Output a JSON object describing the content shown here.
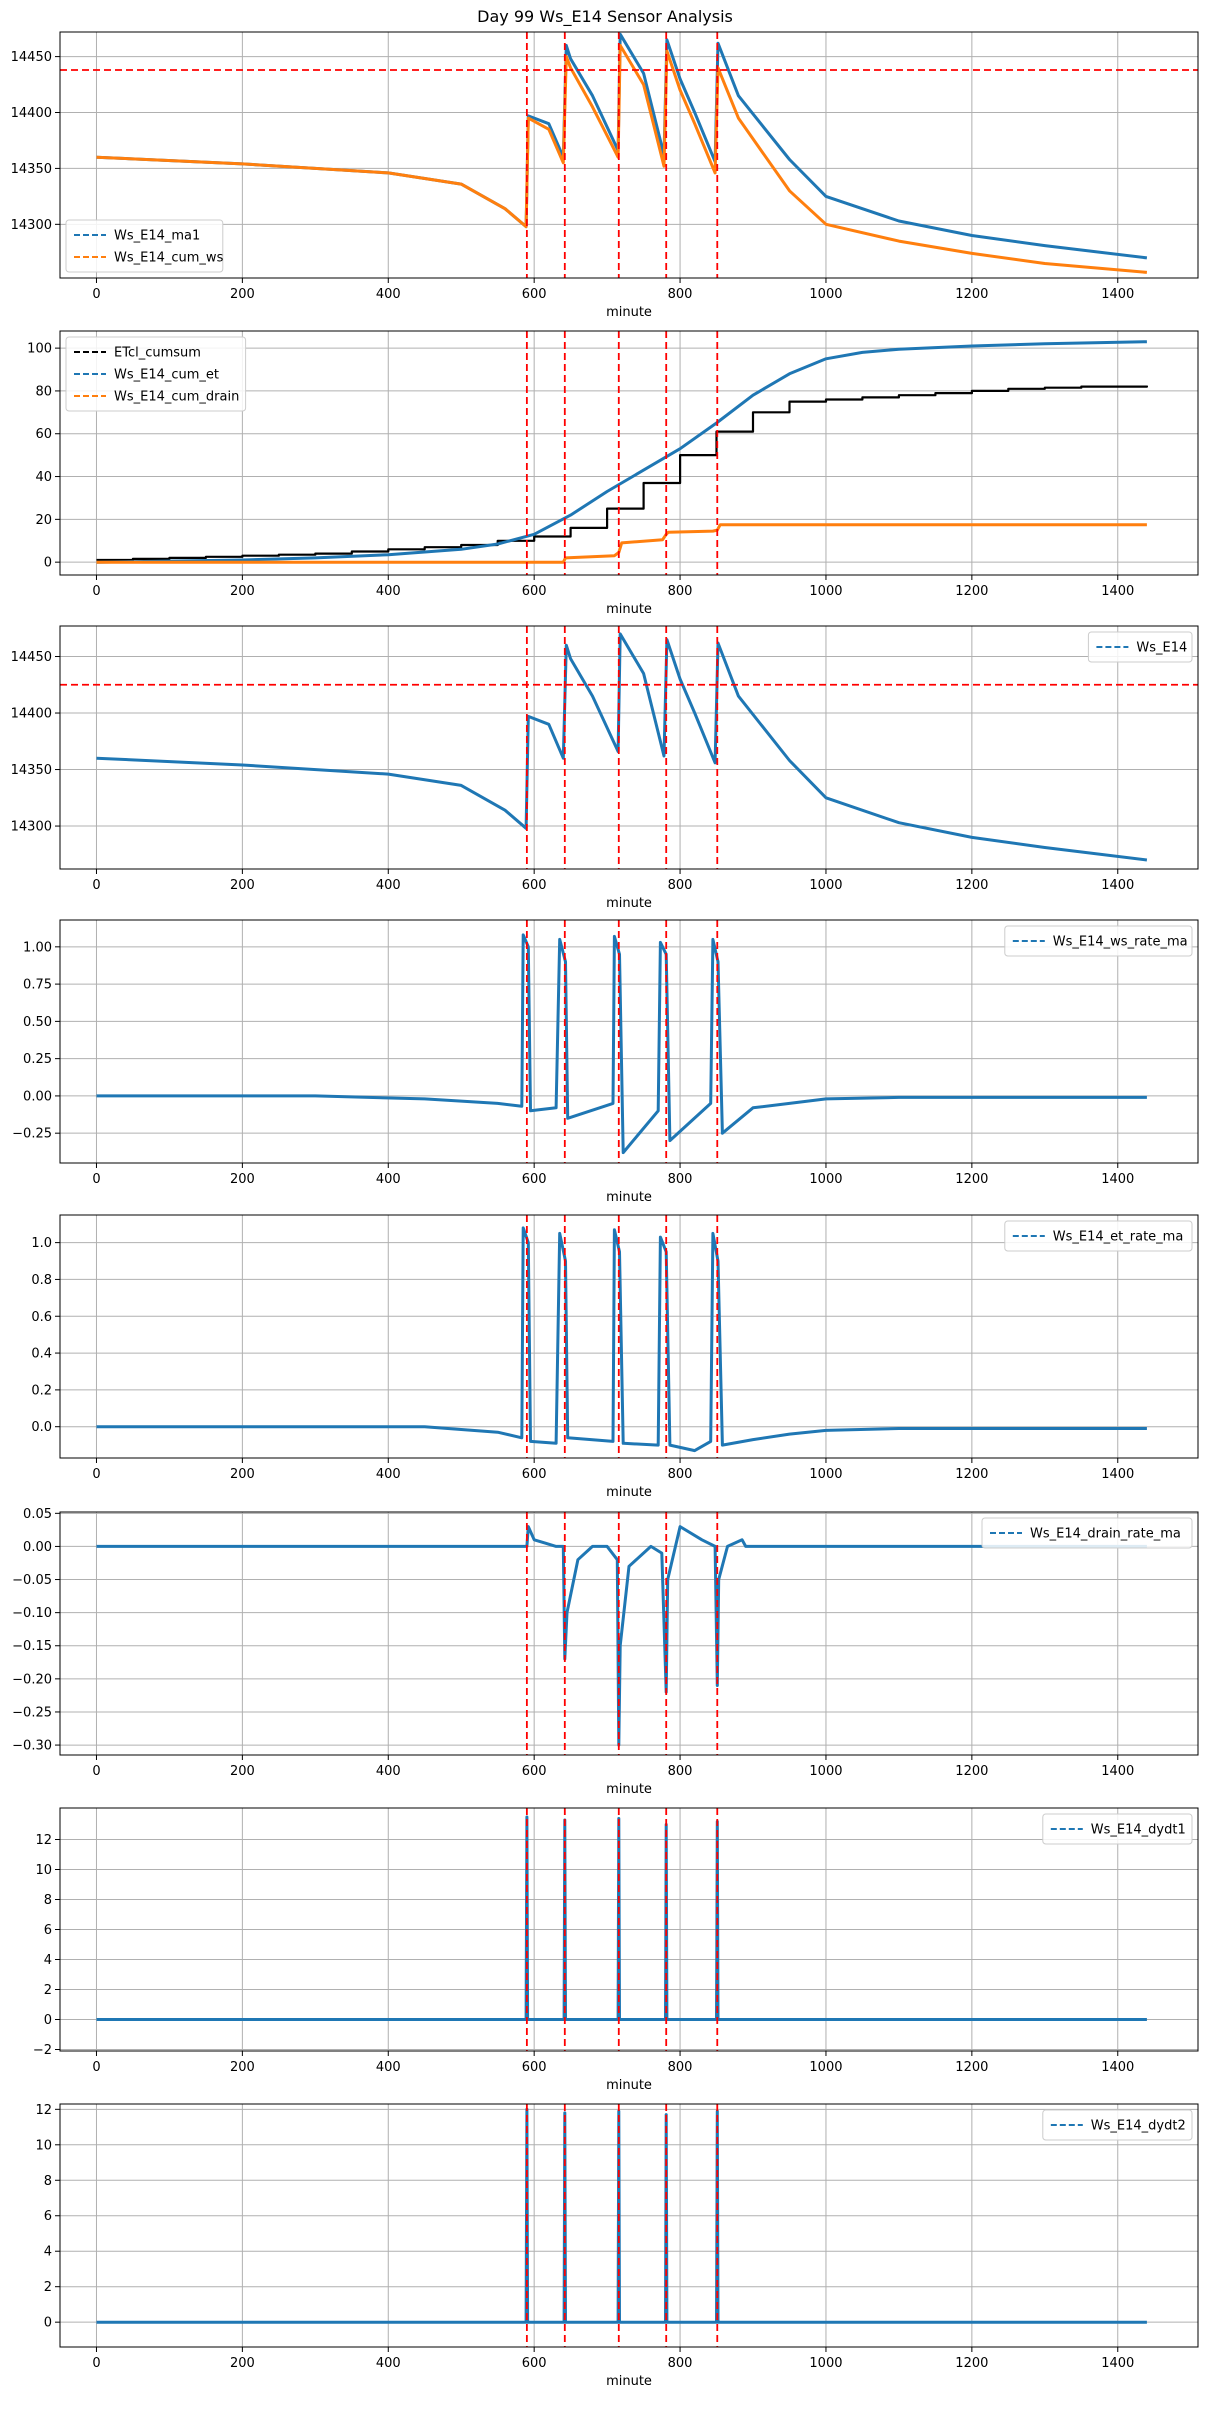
{
  "figure": {
    "title": "Day 99 Ws_E14 Sensor Analysis"
  },
  "colors": {
    "blue": "#1f77b4",
    "orange": "#ff7f0e",
    "black": "#000000",
    "red": "#ff0000",
    "grid": "#b0b0b0"
  },
  "event_lines": [
    590,
    642,
    716,
    781,
    851
  ],
  "chart_data": [
    {
      "type": "line",
      "id": "p1",
      "xlabel": "minute",
      "xlim": [
        -50,
        1510
      ],
      "ylim": [
        14252,
        14472
      ],
      "xticks": [
        0,
        200,
        400,
        600,
        800,
        1000,
        1200,
        1400
      ],
      "yticks": [
        14300,
        14350,
        14400,
        14450
      ],
      "ytick_labels": [
        "14300",
        "14350",
        "14400",
        "14450"
      ],
      "hline": 14438,
      "legend_loc": "lower-left",
      "series": [
        {
          "name": "Ws_E14_ma1",
          "color": "blue",
          "x": [
            0,
            200,
            400,
            500,
            560,
            589,
            592,
            620,
            640,
            644,
            650,
            680,
            715,
            718,
            750,
            778,
            782,
            800,
            820,
            848,
            852,
            880,
            950,
            1000,
            1100,
            1200,
            1300,
            1440
          ],
          "y": [
            14360,
            14354,
            14346,
            14336,
            14314,
            14298,
            14397,
            14390,
            14360,
            14460,
            14448,
            14415,
            14366,
            14470,
            14435,
            14362,
            14465,
            14430,
            14400,
            14356,
            14462,
            14415,
            14358,
            14325,
            14303,
            14290,
            14281,
            14270
          ]
        },
        {
          "name": "Ws_E14_cum_ws",
          "color": "orange",
          "x": [
            0,
            200,
            400,
            500,
            560,
            589,
            592,
            620,
            640,
            644,
            650,
            680,
            715,
            718,
            750,
            778,
            782,
            800,
            820,
            848,
            852,
            880,
            950,
            1000,
            1100,
            1200,
            1300,
            1440
          ],
          "y": [
            14360,
            14354,
            14346,
            14336,
            14314,
            14298,
            14395,
            14385,
            14355,
            14450,
            14440,
            14405,
            14360,
            14460,
            14425,
            14352,
            14455,
            14420,
            14390,
            14346,
            14440,
            14395,
            14330,
            14300,
            14285,
            14274,
            14265,
            14257
          ]
        }
      ]
    },
    {
      "type": "line",
      "id": "p2",
      "xlabel": "minute",
      "xlim": [
        -50,
        1510
      ],
      "ylim": [
        -6,
        108
      ],
      "xticks": [
        0,
        200,
        400,
        600,
        800,
        1000,
        1200,
        1400
      ],
      "yticks": [
        0,
        20,
        40,
        60,
        80,
        100
      ],
      "ytick_labels": [
        "0",
        "20",
        "40",
        "60",
        "80",
        "100"
      ],
      "legend_loc": "upper-left",
      "series": [
        {
          "name": "ETcl_cumsum",
          "color": "black",
          "step": true,
          "x": [
            0,
            50,
            100,
            150,
            200,
            250,
            300,
            350,
            400,
            450,
            500,
            550,
            600,
            650,
            700,
            750,
            800,
            850,
            900,
            950,
            1000,
            1050,
            1100,
            1150,
            1200,
            1250,
            1300,
            1350,
            1440
          ],
          "y": [
            1,
            1.5,
            2,
            2.5,
            3,
            3.5,
            4,
            5,
            6,
            7,
            8,
            10,
            12,
            16,
            25,
            37,
            50,
            61,
            70,
            75,
            76,
            77,
            78,
            79,
            80,
            81,
            81.5,
            82,
            82.5
          ]
        },
        {
          "name": "Ws_E14_cum_et",
          "color": "blue",
          "x": [
            0,
            100,
            200,
            300,
            400,
            500,
            550,
            600,
            650,
            700,
            750,
            800,
            850,
            900,
            950,
            1000,
            1050,
            1100,
            1200,
            1300,
            1440
          ],
          "y": [
            0,
            0.5,
            1,
            2,
            3.5,
            6,
            8.5,
            13,
            22,
            33,
            43,
            53,
            65,
            78,
            88,
            95,
            98,
            99.5,
            101,
            102,
            103
          ]
        },
        {
          "name": "Ws_E14_cum_drain",
          "color": "orange",
          "x": [
            0,
            590,
            640,
            643,
            710,
            716,
            720,
            776,
            781,
            784,
            845,
            851,
            855,
            1000,
            1440
          ],
          "y": [
            0,
            0,
            0,
            2,
            3,
            4.5,
            9,
            10.5,
            13,
            14,
            14.5,
            15,
            17.5,
            17.5,
            17.5
          ]
        }
      ]
    },
    {
      "type": "line",
      "id": "p3",
      "xlabel": "minute",
      "xlim": [
        -50,
        1510
      ],
      "ylim": [
        14262,
        14477
      ],
      "xticks": [
        0,
        200,
        400,
        600,
        800,
        1000,
        1200,
        1400
      ],
      "yticks": [
        14300,
        14350,
        14400,
        14450
      ],
      "ytick_labels": [
        "14300",
        "14350",
        "14400",
        "14450"
      ],
      "hline": 14425,
      "legend_loc": "upper-right",
      "series": [
        {
          "name": "Ws_E14",
          "color": "blue",
          "x": [
            0,
            200,
            400,
            500,
            560,
            589,
            592,
            620,
            640,
            644,
            650,
            680,
            715,
            718,
            750,
            778,
            782,
            800,
            820,
            848,
            852,
            880,
            950,
            1000,
            1100,
            1200,
            1300,
            1440
          ],
          "y": [
            14360,
            14354,
            14346,
            14336,
            14314,
            14298,
            14397,
            14390,
            14360,
            14460,
            14448,
            14415,
            14366,
            14470,
            14435,
            14362,
            14465,
            14430,
            14400,
            14356,
            14462,
            14415,
            14358,
            14325,
            14303,
            14290,
            14281,
            14270
          ]
        }
      ]
    },
    {
      "type": "line",
      "id": "p4",
      "xlabel": "minute",
      "xlim": [
        -50,
        1510
      ],
      "ylim": [
        -0.45,
        1.18
      ],
      "xticks": [
        0,
        200,
        400,
        600,
        800,
        1000,
        1200,
        1400
      ],
      "yticks": [
        -0.25,
        0,
        0.25,
        0.5,
        0.75,
        1.0
      ],
      "ytick_labels": [
        "−0.25",
        "0.00",
        "0.25",
        "0.50",
        "0.75",
        "1.00"
      ],
      "legend_loc": "upper-right",
      "series": [
        {
          "name": "Ws_E14_ws_rate_ma",
          "color": "blue",
          "x": [
            0,
            300,
            450,
            550,
            583,
            585,
            592,
            595,
            630,
            635,
            643,
            646,
            708,
            710,
            717,
            722,
            770,
            773,
            781,
            786,
            842,
            845,
            852,
            858,
            900,
            950,
            1000,
            1100,
            1440
          ],
          "y": [
            0,
            0,
            -0.02,
            -0.05,
            -0.07,
            1.08,
            1.0,
            -0.1,
            -0.08,
            1.05,
            0.9,
            -0.15,
            -0.05,
            1.07,
            0.95,
            -0.38,
            -0.1,
            1.03,
            0.95,
            -0.3,
            -0.05,
            1.05,
            0.9,
            -0.25,
            -0.08,
            -0.05,
            -0.02,
            -0.01,
            -0.01
          ]
        }
      ]
    },
    {
      "type": "line",
      "id": "p5",
      "xlabel": "minute",
      "xlim": [
        -50,
        1510
      ],
      "ylim": [
        -0.17,
        1.15
      ],
      "xticks": [
        0,
        200,
        400,
        600,
        800,
        1000,
        1200,
        1400
      ],
      "yticks": [
        0,
        0.2,
        0.4,
        0.6,
        0.8,
        1.0
      ],
      "ytick_labels": [
        "0.0",
        "0.2",
        "0.4",
        "0.6",
        "0.8",
        "1.0"
      ],
      "legend_loc": "upper-right",
      "series": [
        {
          "name": "Ws_E14_et_rate_ma",
          "color": "blue",
          "x": [
            0,
            300,
            450,
            550,
            583,
            585,
            592,
            595,
            630,
            635,
            643,
            646,
            708,
            710,
            717,
            722,
            770,
            773,
            781,
            786,
            820,
            842,
            845,
            852,
            858,
            900,
            950,
            1000,
            1100,
            1440
          ],
          "y": [
            0,
            0,
            0,
            -0.03,
            -0.06,
            1.08,
            1.0,
            -0.08,
            -0.09,
            1.05,
            0.9,
            -0.06,
            -0.08,
            1.07,
            0.95,
            -0.09,
            -0.1,
            1.03,
            0.95,
            -0.1,
            -0.13,
            -0.08,
            1.05,
            0.9,
            -0.1,
            -0.07,
            -0.04,
            -0.02,
            -0.01,
            -0.01
          ]
        }
      ]
    },
    {
      "type": "line",
      "id": "p6",
      "xlabel": "minute",
      "xlim": [
        -50,
        1510
      ],
      "ylim": [
        -0.315,
        0.052
      ],
      "xticks": [
        0,
        200,
        400,
        600,
        800,
        1000,
        1200,
        1400
      ],
      "yticks": [
        -0.3,
        -0.25,
        -0.2,
        -0.15,
        -0.1,
        -0.05,
        0,
        0.05
      ],
      "ytick_labels": [
        "−0.30",
        "−0.25",
        "−0.20",
        "−0.15",
        "−0.10",
        "−0.05",
        "0.00",
        "0.05"
      ],
      "legend_loc": "upper-right",
      "series": [
        {
          "name": "Ws_E14_drain_rate_ma",
          "color": "blue",
          "x": [
            0,
            590,
            592,
            600,
            615,
            630,
            640,
            642,
            645,
            660,
            680,
            700,
            714,
            716,
            718,
            730,
            760,
            775,
            781,
            783,
            800,
            830,
            848,
            851,
            853,
            865,
            885,
            890,
            1440
          ],
          "y": [
            0,
            0,
            0.03,
            0.01,
            0.005,
            0,
            0,
            -0.17,
            -0.1,
            -0.02,
            0,
            0,
            -0.02,
            -0.3,
            -0.15,
            -0.03,
            0,
            -0.01,
            -0.22,
            -0.05,
            0.03,
            0.01,
            0,
            -0.21,
            -0.05,
            0,
            0.01,
            0,
            0
          ]
        }
      ]
    },
    {
      "type": "line",
      "id": "p7",
      "xlabel": "minute",
      "xlim": [
        -50,
        1510
      ],
      "ylim": [
        -2.1,
        14.1
      ],
      "xticks": [
        0,
        200,
        400,
        600,
        800,
        1000,
        1200,
        1400
      ],
      "yticks": [
        -2,
        0,
        2,
        4,
        6,
        8,
        10,
        12
      ],
      "ytick_labels": [
        "−2",
        "0",
        "2",
        "4",
        "6",
        "8",
        "10",
        "12"
      ],
      "legend_loc": "upper-right",
      "series": [
        {
          "name": "Ws_E14_dydt1",
          "color": "blue",
          "x": [
            0,
            589,
            590,
            591,
            641,
            642,
            643,
            715,
            716,
            717,
            780,
            781,
            782,
            850,
            851,
            852,
            1440
          ],
          "y": [
            0,
            0,
            13.5,
            0,
            0,
            13.3,
            0,
            0,
            13.4,
            0,
            0,
            13,
            0,
            0,
            13.2,
            0,
            0
          ]
        }
      ]
    },
    {
      "type": "line",
      "id": "p8",
      "xlabel": "minute",
      "xlim": [
        -50,
        1510
      ],
      "ylim": [
        -1.4,
        12.3
      ],
      "xticks": [
        0,
        200,
        400,
        600,
        800,
        1000,
        1200,
        1400
      ],
      "yticks": [
        0,
        2,
        4,
        6,
        8,
        10,
        12
      ],
      "ytick_labels": [
        "0",
        "2",
        "4",
        "6",
        "8",
        "10",
        "12"
      ],
      "legend_loc": "upper-right",
      "series": [
        {
          "name": "Ws_E14_dydt2",
          "color": "blue",
          "x": [
            0,
            589,
            590,
            591,
            641,
            642,
            643,
            715,
            716,
            717,
            780,
            781,
            782,
            850,
            851,
            852,
            1440
          ],
          "y": [
            0,
            0,
            12,
            0,
            0,
            11.8,
            0,
            0,
            11.9,
            0,
            0,
            11.7,
            0,
            0,
            11.9,
            0,
            0
          ]
        }
      ]
    }
  ]
}
